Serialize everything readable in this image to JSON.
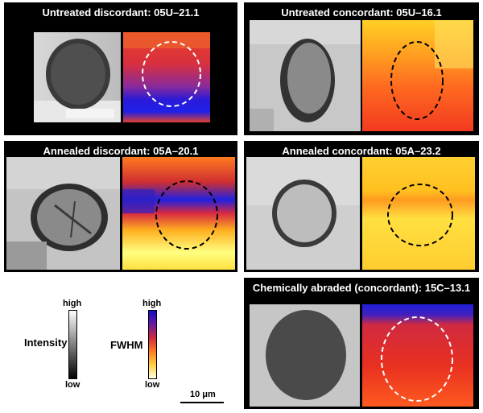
{
  "panels": [
    {
      "title": "Untreated discordant: 05U–21.1",
      "ellipse_color": "#ffffff"
    },
    {
      "title": "Untreated concordant: 05U–16.1",
      "ellipse_color": "#000000"
    },
    {
      "title": "Annealed discordant: 05A–20.1",
      "ellipse_color": "#000000"
    },
    {
      "title": "Annealed concordant: 05A–23.2",
      "ellipse_color": "#000000"
    },
    {
      "title": "Chemically abraded (concordant): 15C–13.1",
      "ellipse_color": "#ffffff"
    }
  ],
  "legend": {
    "intensity": {
      "label": "Intensity",
      "high": "high",
      "low": "low"
    },
    "fwhm": {
      "label": "FWHM",
      "high": "high",
      "low": "low"
    }
  },
  "scale_bar": {
    "label": "10 μm"
  }
}
